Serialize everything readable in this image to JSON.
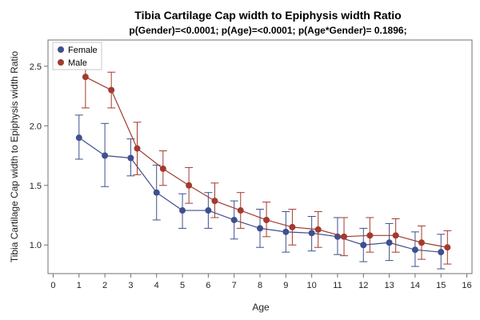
{
  "chart_data": {
    "type": "line",
    "title": "Tibia Cartilage Cap width to Epiphysis width Ratio",
    "subtitle": "p(Gender)=<0.0001; p(Age)=<0.0001; p(Age*Gender)= 0.1896;",
    "xlabel": "Age",
    "ylabel": "Tibia Cartilage Cap width to Epiphysis width Ratio",
    "xlim": [
      -0.2,
      16.2
    ],
    "ylim": [
      0.76,
      2.72
    ],
    "x_ticks": [
      "0",
      "1",
      "2",
      "3",
      "4",
      "5",
      "6",
      "7",
      "8",
      "9",
      "10",
      "11",
      "12",
      "13",
      "14",
      "15",
      "16"
    ],
    "y_ticks": [
      "1.0",
      "1.5",
      "2.0",
      "2.5"
    ],
    "legend_position": "top-left",
    "grid": false,
    "series": [
      {
        "name": "Female",
        "color": "#3f4f8f",
        "x": [
          1,
          2,
          3,
          4,
          5,
          6,
          7,
          8,
          9,
          10,
          11,
          12,
          13,
          14,
          15
        ],
        "y": [
          1.9,
          1.75,
          1.73,
          1.44,
          1.29,
          1.29,
          1.21,
          1.14,
          1.11,
          1.1,
          1.07,
          1.0,
          1.02,
          0.96,
          0.94
        ],
        "err_low": [
          1.72,
          1.49,
          1.58,
          1.21,
          1.14,
          1.14,
          1.05,
          0.98,
          0.94,
          0.95,
          0.92,
          0.86,
          0.87,
          0.82,
          0.8
        ],
        "err_high": [
          2.09,
          2.02,
          1.89,
          1.67,
          1.43,
          1.44,
          1.37,
          1.3,
          1.28,
          1.24,
          1.23,
          1.14,
          1.18,
          1.11,
          1.09
        ]
      },
      {
        "name": "Male",
        "color": "#a33a2e",
        "x": [
          1.25,
          2.25,
          3.25,
          4.25,
          5.25,
          6.25,
          7.25,
          8.25,
          9.25,
          10.25,
          11.25,
          12.25,
          13.25,
          14.25,
          15.25
        ],
        "y": [
          2.41,
          2.3,
          1.81,
          1.64,
          1.5,
          1.37,
          1.29,
          1.21,
          1.15,
          1.13,
          1.07,
          1.08,
          1.08,
          1.02,
          0.98
        ],
        "err_low": [
          2.15,
          2.15,
          1.59,
          1.5,
          1.35,
          1.23,
          1.14,
          1.07,
          1.0,
          0.98,
          0.91,
          0.94,
          0.94,
          0.88,
          0.84
        ],
        "err_high": [
          2.67,
          2.45,
          2.03,
          1.79,
          1.65,
          1.52,
          1.44,
          1.36,
          1.3,
          1.28,
          1.23,
          1.23,
          1.22,
          1.16,
          1.12
        ]
      }
    ]
  }
}
